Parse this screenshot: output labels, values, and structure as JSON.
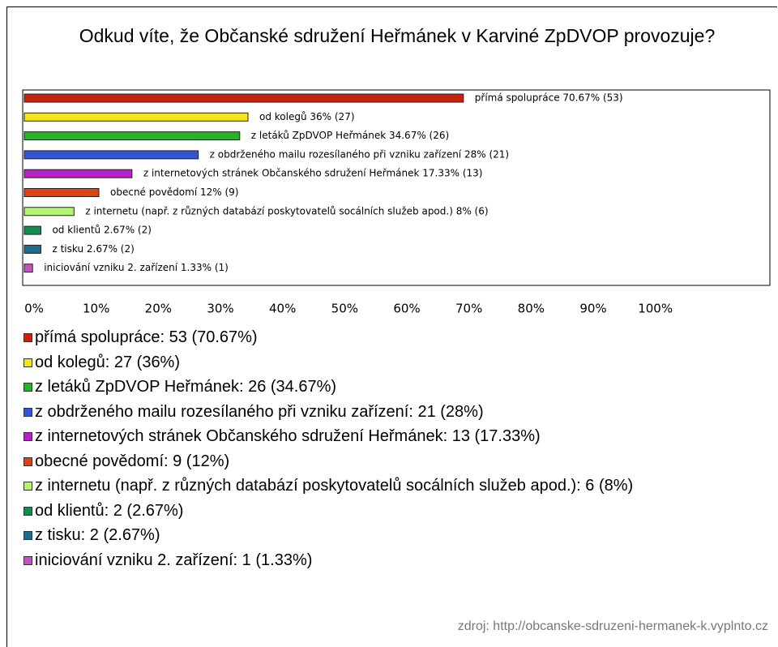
{
  "chart_data": {
    "type": "barh",
    "title": "Odkud víte, že Občanské sdružení Heřmánek v Karviné ZpDVOP provozuje?",
    "categories": [
      "přímá spolupráce",
      "od kolegů",
      "z letáků ZpDVOP Heřmánek",
      "z obdrženého mailu rozesílaného při vzniku zařízení",
      "z internetových stránek Občanského sdružení Heřmánek",
      "obecné povědomí",
      "z internetu (např. z různých databází poskytovatelů socálních služeb apod.)",
      "od klientů",
      "z tisku",
      "iniciování vzniku 2. zařízení"
    ],
    "values": [
      70.67,
      36,
      34.67,
      28,
      17.33,
      12,
      8,
      2.67,
      2.67,
      1.33
    ],
    "counts": [
      53,
      27,
      26,
      21,
      13,
      9,
      6,
      2,
      2,
      1
    ],
    "value_labels": [
      "přímá spolupráce 70.67% (53)",
      "od kolegů 36% (27)",
      "z letáků ZpDVOP Heřmánek 34.67% (26)",
      "z obdrženého mailu rozesílaného při vzniku zařízení 28% (21)",
      "z internetových stránek Občanského sdružení Heřmánek 17.33% (13)",
      "obecné povědomí 12% (9)",
      "z internetu (např. z různých databází poskytovatelů socálních služeb apod.) 8% (6)",
      "od klientů 2.67% (2)",
      "z tisku 2.67% (2)",
      "iniciování vzniku 2. zařízení 1.33% (1)"
    ],
    "legend_labels": [
      "přímá spolupráce: 53 (70.67%)",
      "od kolegů: 27 (36%)",
      "z letáků ZpDVOP Heřmánek: 26 (34.67%)",
      "z obdrženého mailu rozesílaného při vzniku zařízení: 21 (28%)",
      "z internetových stránek Občanského sdružení Heřmánek: 13 (17.33%)",
      "obecné povědomí: 9 (12%)",
      "z internetu (např. z různých databází poskytovatelů socálních služeb apod.): 6 (8%)",
      "od klientů: 2 (2.67%)",
      "z tisku: 2 (2.67%)",
      "iniciování vzniku 2. zařízení: 1 (1.33%)"
    ],
    "colors": [
      "#c8240c",
      "#f4e41c",
      "#24b424",
      "#3454d4",
      "#b424c4",
      "#dc4414",
      "#b4f474",
      "#148c4c",
      "#1c6c8c",
      "#c454c4"
    ],
    "xlim": [
      0,
      120
    ],
    "xticks": [
      {
        "value": 0,
        "label": "0%"
      },
      {
        "value": 10,
        "label": "10%"
      },
      {
        "value": 20,
        "label": "20%"
      },
      {
        "value": 30,
        "label": "30%"
      },
      {
        "value": 40,
        "label": "40%"
      },
      {
        "value": 50,
        "label": "50%"
      },
      {
        "value": 60,
        "label": "60%"
      },
      {
        "value": 70,
        "label": "70%"
      },
      {
        "value": 80,
        "label": "80%"
      },
      {
        "value": 90,
        "label": "90%"
      },
      {
        "value": 100,
        "label": "100%"
      }
    ],
    "source": "zdroj: http://obcanske-sdruzeni-hermanek-k.vyplnto.cz"
  }
}
